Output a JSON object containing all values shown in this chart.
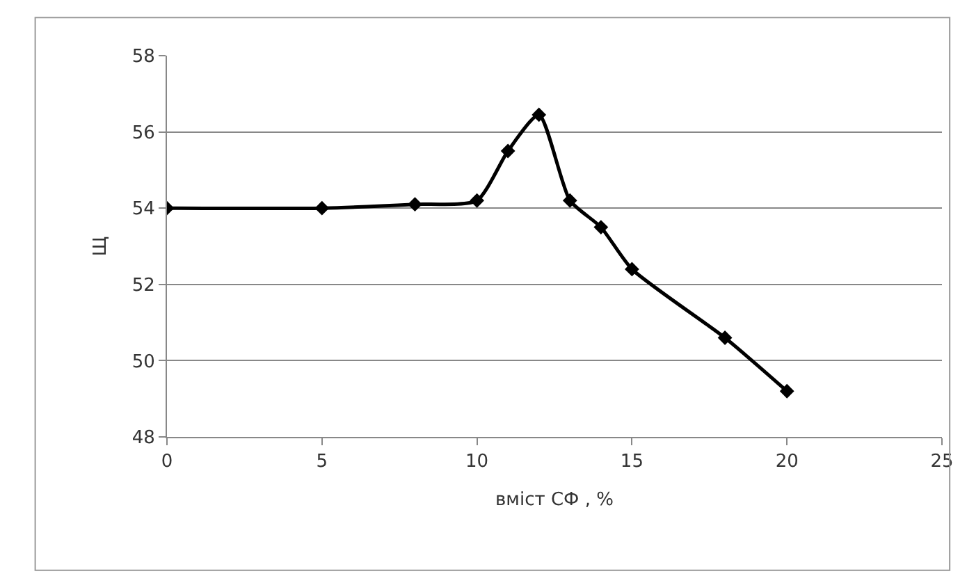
{
  "chart_data": {
    "type": "line",
    "xlabel": "вміст СФ , %",
    "ylabel": "Щ",
    "x": [
      0,
      5,
      8,
      10,
      11,
      12,
      13,
      14,
      15,
      18,
      20
    ],
    "series": [
      {
        "color": "#000000",
        "values": [
          54.0,
          54.0,
          54.1,
          54.2,
          55.5,
          56.45,
          54.2,
          53.5,
          52.4,
          50.6,
          49.2
        ]
      }
    ],
    "xlim": [
      0,
      25
    ],
    "xticks": [
      0,
      5,
      10,
      15,
      20,
      25
    ],
    "ylim": [
      48,
      58
    ],
    "yticks": [
      48,
      50,
      52,
      54,
      56,
      58
    ],
    "grid": "y",
    "legend": false,
    "marker": "diamond",
    "line_style": "solid"
  }
}
